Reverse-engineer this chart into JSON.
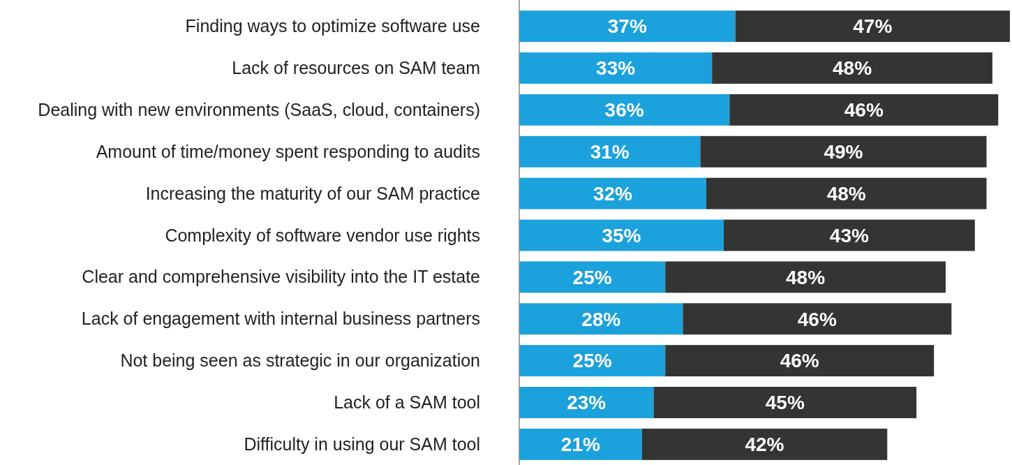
{
  "chart_data": {
    "type": "bar",
    "orientation": "horizontal",
    "stacked": true,
    "categories": [
      "Finding ways to optimize software use",
      "Lack of resources on SAM team",
      "Dealing with new environments (SaaS, cloud, containers)",
      "Amount of time/money spent responding to audits",
      "Increasing the maturity of our SAM practice",
      "Complexity of software vendor use rights",
      "Clear and comprehensive visibility into the IT estate",
      "Lack of engagement with internal business partners",
      "Not being seen as strategic in our organization",
      "Lack of a SAM tool",
      "Difficulty in using our SAM tool"
    ],
    "tick_labels": "y",
    "series": [
      {
        "color": "#1ba1dc",
        "values": [
          37,
          33,
          36,
          31,
          32,
          35,
          25,
          28,
          25,
          23,
          21
        ],
        "value_labels": [
          "37%",
          "33%",
          "36%",
          "31%",
          "32%",
          "35%",
          "25%",
          "28%",
          "25%",
          "23%",
          "21%"
        ]
      },
      {
        "color": "#333434",
        "values": [
          47,
          48,
          46,
          49,
          48,
          43,
          48,
          46,
          46,
          45,
          42
        ],
        "value_labels": [
          "47%",
          "48%",
          "46%",
          "49%",
          "48%",
          "43%",
          "48%",
          "46%",
          "46%",
          "45%",
          "42%"
        ]
      }
    ]
  }
}
